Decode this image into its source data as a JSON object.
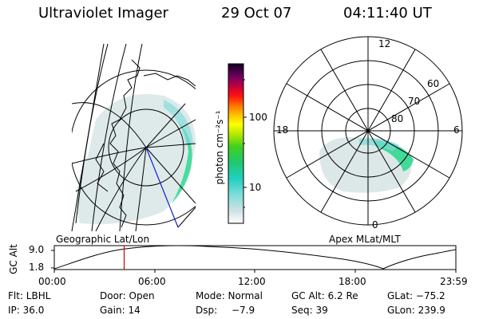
{
  "header": {
    "instrument": "Ultraviolet Imager",
    "date": "29 Oct 07",
    "time": "04:11:40 UT"
  },
  "colorbar": {
    "unit_label": "photon cm⁻²s⁻¹",
    "ticks": [
      "100",
      "10"
    ]
  },
  "left_panel": {
    "label": "Geographic Lat/Lon"
  },
  "right_panel": {
    "label": "Apex MLat/MLT",
    "mlt_labels": {
      "top": "12",
      "left": "18",
      "right": "6",
      "bottom": "0"
    },
    "lat_labels": [
      "60",
      "70",
      "80"
    ]
  },
  "altitude_plot": {
    "ylabel": "GC Alt",
    "yticks": [
      "9.0",
      "1.8"
    ],
    "xticks": [
      "00:00",
      "06:00",
      "12:00",
      "18:00",
      "23:59"
    ],
    "current_time_fraction": 0.174,
    "marker_color": "#d00000"
  },
  "info": {
    "filter": "Flt: LBHL",
    "door": "Door: Open",
    "mode": "Mode: Normal",
    "gc_alt": "GC Alt: 6.2 Re",
    "glat": "GLat: −75.2",
    "ip": "IP: 36.0",
    "gain": "Gain: 14",
    "dsp_label": "Dsp:",
    "dsp_value": "−7.9",
    "seq": "Seq: 39",
    "glon": "GLon: 239.9"
  }
}
